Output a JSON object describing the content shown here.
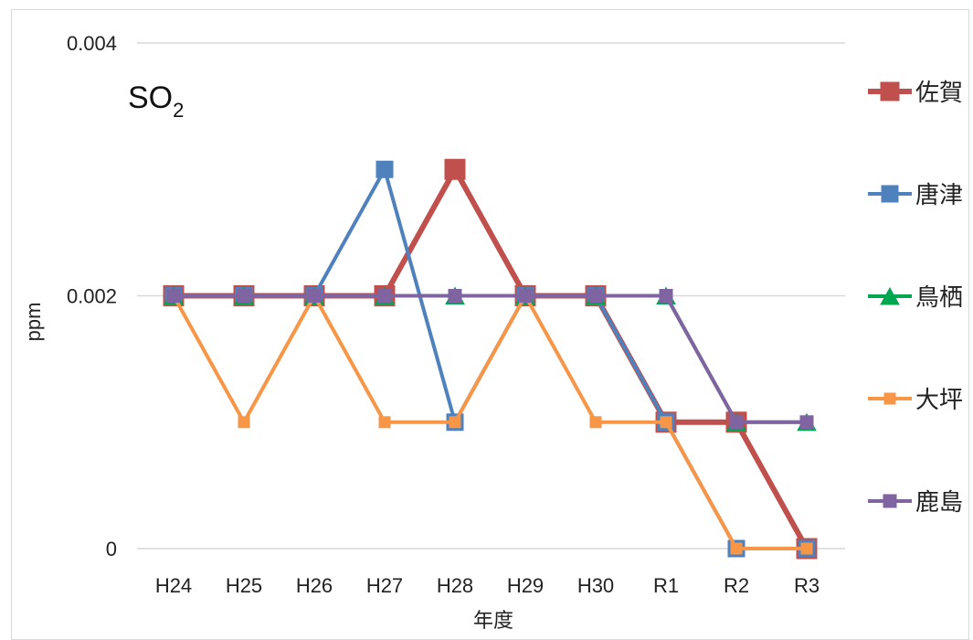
{
  "chart_data": {
    "type": "line",
    "title": "SO",
    "title_subscript": "2",
    "xlabel": "年度",
    "ylabel": "ppm",
    "categories": [
      "H24",
      "H25",
      "H26",
      "H27",
      "H28",
      "H29",
      "H30",
      "R1",
      "R2",
      "R3"
    ],
    "ylim": [
      0,
      0.004
    ],
    "yticks": [
      0,
      0.002,
      0.004
    ],
    "ytick_labels": [
      "0",
      "0.002",
      "0.004"
    ],
    "grid": true,
    "legend_position": "right",
    "series": [
      {
        "name": "佐賀",
        "color": "#C0504D",
        "marker": "square",
        "line_width": 6,
        "marker_size": 22,
        "values": [
          0.002,
          0.002,
          0.002,
          0.002,
          0.003,
          0.002,
          0.002,
          0.001,
          0.001,
          0
        ]
      },
      {
        "name": "唐津",
        "color": "#4F81BD",
        "marker": "square",
        "line_width": 4,
        "marker_size": 18,
        "values": [
          0.002,
          0.002,
          0.002,
          0.003,
          0.001,
          0.002,
          0.002,
          0.001,
          0,
          0
        ]
      },
      {
        "name": "鳥栖",
        "color": "#00A650",
        "marker": "triangle",
        "line_width": 4,
        "marker_size": 20,
        "values": [
          0.002,
          0.002,
          0.002,
          0.002,
          0.002,
          0.002,
          0.002,
          0.002,
          0.001,
          0.001
        ]
      },
      {
        "name": "大坪",
        "color": "#F79646",
        "marker": "square",
        "line_width": 4,
        "marker_size": 12,
        "values": [
          0.002,
          0.001,
          0.002,
          0.001,
          0.001,
          0.002,
          0.001,
          0.001,
          0,
          0
        ]
      },
      {
        "name": "鹿島",
        "color": "#8064A2",
        "marker": "square",
        "line_width": 4,
        "marker_size": 14,
        "values": [
          0.002,
          0.002,
          0.002,
          0.002,
          0.002,
          0.002,
          0.002,
          0.002,
          0.001,
          0.001
        ]
      }
    ]
  }
}
